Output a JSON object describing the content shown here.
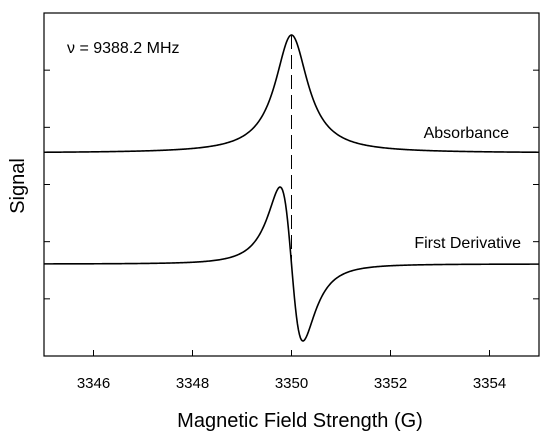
{
  "chart_data": {
    "type": "line",
    "title": "",
    "xlabel": "Magnetic Field Strength (G)",
    "ylabel": "Signal",
    "xlim": [
      3345,
      3355
    ],
    "x_ticks": [
      3346,
      3348,
      3350,
      3352,
      3354
    ],
    "x_tick_labels": [
      "3346",
      "3348",
      "3350",
      "3352",
      "3354"
    ],
    "y_tick_count": 5,
    "y_tick_labels_shown": false,
    "grid": false,
    "legend": "none",
    "annotations": {
      "frequency": "ν = 9388.2 MHz"
    },
    "reference_line": {
      "x": 3350,
      "style": "dashed"
    },
    "series": [
      {
        "name": "Absorbance",
        "shape": "lorentzian",
        "center": 3350.0,
        "half_width_gauss": 0.4,
        "baseline": 0,
        "peak": 1
      },
      {
        "name": "First Derivative",
        "shape": "lorentzian-derivative",
        "center": 3350.0,
        "half_width_gauss": 0.4,
        "baseline": 0,
        "peak_positive": 0.65,
        "peak_negative": -0.65
      }
    ],
    "line_color": "#000000"
  }
}
